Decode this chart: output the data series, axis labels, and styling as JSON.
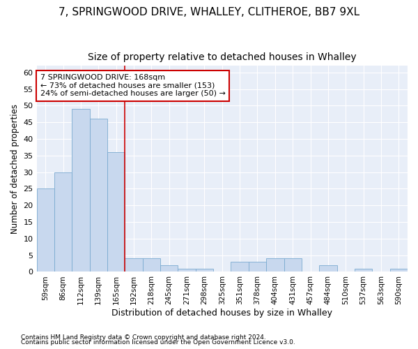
{
  "title1": "7, SPRINGWOOD DRIVE, WHALLEY, CLITHEROE, BB7 9XL",
  "title2": "Size of property relative to detached houses in Whalley",
  "xlabel": "Distribution of detached houses by size in Whalley",
  "ylabel": "Number of detached properties",
  "categories": [
    "59sqm",
    "86sqm",
    "112sqm",
    "139sqm",
    "165sqm",
    "192sqm",
    "218sqm",
    "245sqm",
    "271sqm",
    "298sqm",
    "325sqm",
    "351sqm",
    "378sqm",
    "404sqm",
    "431sqm",
    "457sqm",
    "484sqm",
    "510sqm",
    "537sqm",
    "563sqm",
    "590sqm"
  ],
  "values": [
    25,
    30,
    49,
    46,
    36,
    4,
    4,
    2,
    1,
    1,
    0,
    3,
    3,
    4,
    4,
    0,
    2,
    0,
    1,
    0,
    1
  ],
  "bar_color": "#c8d8ee",
  "bar_edge_color": "#7aaad0",
  "vline_x": 4.5,
  "vline_color": "#cc0000",
  "annotation_line1": "7 SPRINGWOOD DRIVE: 168sqm",
  "annotation_line2": "← 73% of detached houses are smaller (153)",
  "annotation_line3": "24% of semi-detached houses are larger (50) →",
  "annotation_box_color": "#ffffff",
  "annotation_box_edge": "#cc0000",
  "ylim": [
    0,
    62
  ],
  "yticks": [
    0,
    5,
    10,
    15,
    20,
    25,
    30,
    35,
    40,
    45,
    50,
    55,
    60
  ],
  "footnote1": "Contains HM Land Registry data © Crown copyright and database right 2024.",
  "footnote2": "Contains public sector information licensed under the Open Government Licence v3.0.",
  "background_color": "#ffffff",
  "plot_bg_color": "#e8eef8",
  "grid_color": "#ffffff",
  "title1_fontsize": 11,
  "title2_fontsize": 10
}
